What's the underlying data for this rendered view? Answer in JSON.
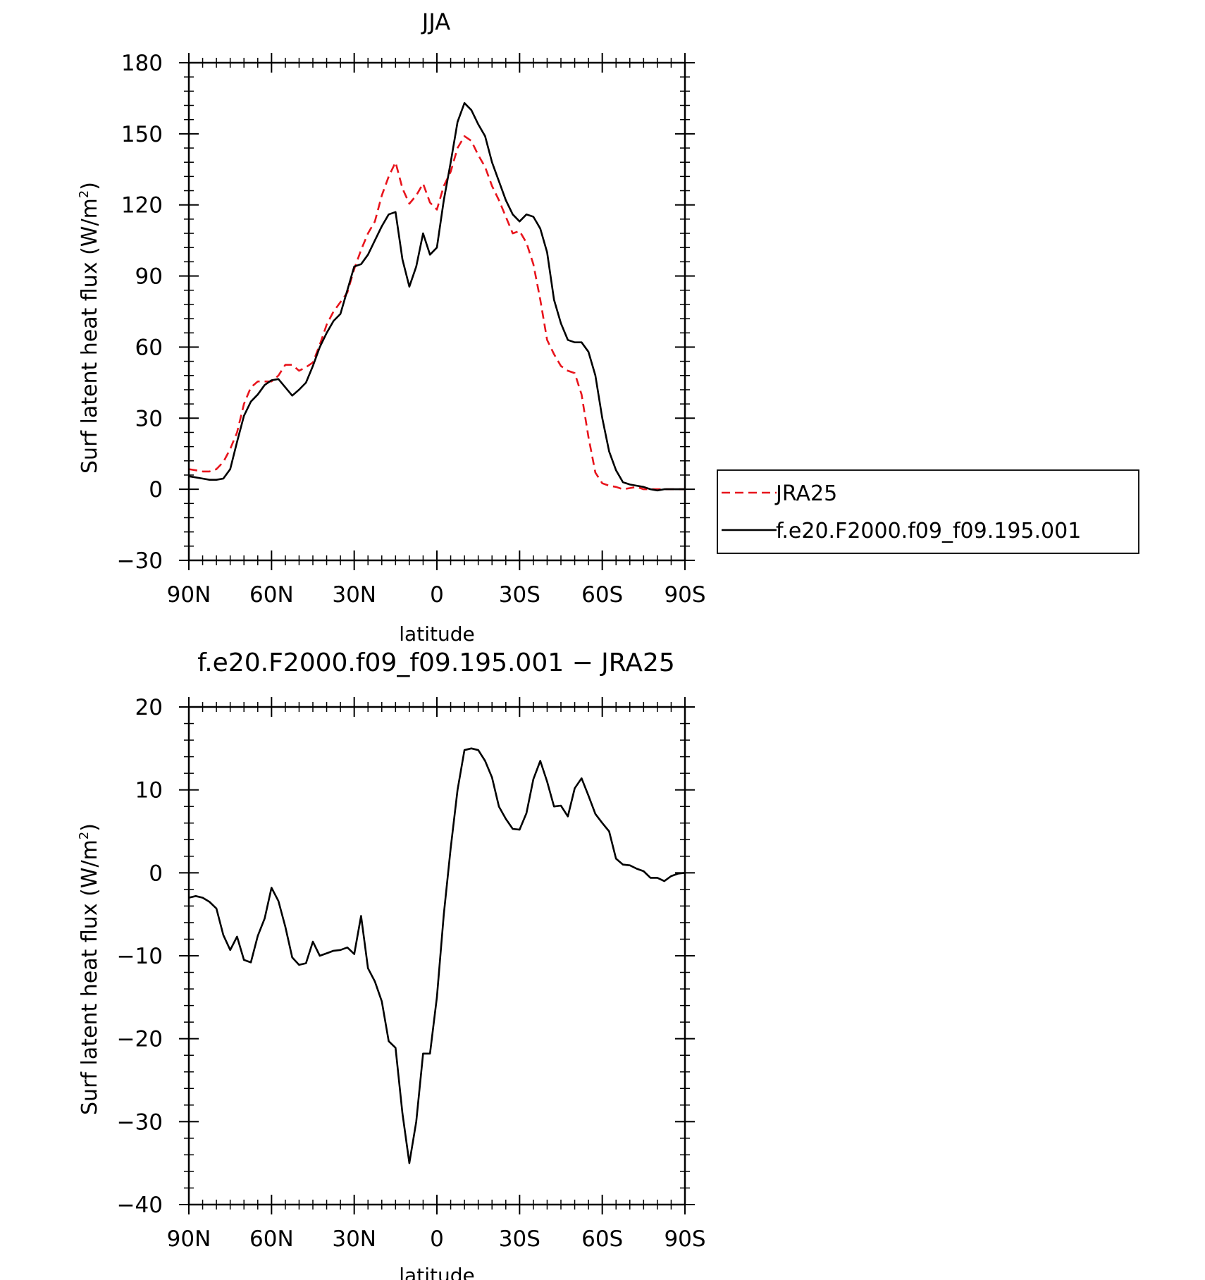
{
  "chart_data": [
    {
      "type": "line",
      "title": "JJA",
      "xlabel": "latitude",
      "ylabel": "Surf latent heat flux (W/m²)",
      "ylabel_main": "Surf latent heat flux (W/m",
      "ylabel_sup": "2",
      "ylabel_end": ")",
      "xlim": [
        90,
        -90
      ],
      "ylim": [
        -30,
        180
      ],
      "xticks": [
        90,
        60,
        30,
        0,
        -30,
        -60,
        -90
      ],
      "xtick_labels": [
        "90N",
        "60N",
        "30N",
        "0",
        "30S",
        "60S",
        "90S"
      ],
      "yticks": [
        -30,
        0,
        30,
        60,
        90,
        120,
        150,
        180
      ],
      "ytick_labels": [
        "−30",
        "0",
        "30",
        "60",
        "90",
        "120",
        "150",
        "180"
      ],
      "x": [
        90,
        87.5,
        85,
        82.5,
        80,
        77.5,
        75,
        72.5,
        70,
        67.5,
        65,
        62.5,
        60,
        57.5,
        55,
        52.5,
        50,
        47.5,
        45,
        42.5,
        40,
        37.5,
        35,
        32.5,
        30,
        27.5,
        25,
        22.5,
        20,
        17.5,
        15,
        12.5,
        10,
        7.5,
        5,
        2.5,
        0,
        -2.5,
        -5,
        -7.5,
        -10,
        -12.5,
        -15,
        -17.5,
        -20,
        -22.5,
        -25,
        -27.5,
        -30,
        -32.5,
        -35,
        -37.5,
        -40,
        -42.5,
        -45,
        -47.5,
        -50,
        -52.5,
        -55,
        -57.5,
        -60,
        -62.5,
        -65,
        -67.5,
        -70,
        -72.5,
        -75,
        -77.5,
        -80,
        -82.5,
        -85,
        -87.5,
        -90
      ],
      "series": [
        {
          "name": "JRA25",
          "color": "#e8141c",
          "style": "dashed",
          "values": [
            8.5,
            8,
            7.5,
            7.5,
            8.5,
            11.5,
            17,
            24,
            36,
            43,
            45.5,
            45.5,
            45.5,
            48,
            52.5,
            52.5,
            50,
            51.5,
            53.5,
            61,
            69.5,
            75,
            79,
            83,
            93,
            101,
            108,
            113,
            124,
            132,
            138,
            127,
            120.5,
            124,
            129,
            121,
            118,
            128,
            134,
            144,
            149,
            147,
            141,
            136,
            128,
            122,
            115,
            108,
            109,
            104,
            95,
            80,
            63,
            57,
            52,
            50,
            49,
            40,
            22,
            7,
            2.5,
            1.5,
            1,
            0,
            0.5,
            1,
            0,
            0,
            0,
            0,
            0,
            0,
            0
          ]
        },
        {
          "name": "f.e20.F2000.f09_f09.195.001",
          "color": "#000000",
          "style": "solid",
          "values": [
            5.5,
            5,
            4.5,
            4,
            4,
            4.5,
            8.5,
            20,
            31,
            37,
            40,
            44,
            46,
            46.5,
            43,
            39.5,
            42,
            45,
            52,
            60,
            66,
            71,
            74,
            84,
            94,
            95,
            99,
            105,
            111,
            116,
            117,
            97,
            85.5,
            94,
            108,
            99,
            102,
            122,
            138,
            155,
            163,
            160,
            154,
            149,
            138,
            130,
            122,
            116,
            113,
            116,
            115,
            110,
            100,
            80,
            70,
            63,
            62,
            62,
            58,
            48,
            30,
            16,
            8,
            3,
            2,
            1.5,
            1,
            0,
            -0.5,
            0,
            0,
            0,
            0
          ]
        }
      ],
      "legend": [
        "JRA25",
        "f.e20.F2000.f09_f09.195.001"
      ],
      "legend_position": "right"
    },
    {
      "type": "line",
      "title": "f.e20.F2000.f09_f09.195.001 − JRA25",
      "xlabel": "latitude",
      "ylabel": "Surf latent heat flux (W/m²)",
      "ylabel_main": "Surf latent heat flux (W/m",
      "ylabel_sup": "2",
      "ylabel_end": ")",
      "xlim": [
        90,
        -90
      ],
      "ylim": [
        -40,
        20
      ],
      "xticks": [
        90,
        60,
        30,
        0,
        -30,
        -60,
        -90
      ],
      "xtick_labels": [
        "90N",
        "60N",
        "30N",
        "0",
        "30S",
        "60S",
        "90S"
      ],
      "yticks": [
        -40,
        -30,
        -20,
        -10,
        0,
        10,
        20
      ],
      "ytick_labels": [
        "−40",
        "−30",
        "−20",
        "−10",
        "0",
        "10",
        "20"
      ],
      "x": [
        90,
        87.5,
        85,
        82.5,
        80,
        77.5,
        75,
        72.5,
        70,
        67.5,
        65,
        62.5,
        60,
        57.5,
        55,
        52.5,
        50,
        47.5,
        45,
        42.5,
        40,
        37.5,
        35,
        32.5,
        30,
        27.5,
        25,
        22.5,
        20,
        17.5,
        15,
        12.5,
        10,
        7.5,
        5,
        2.5,
        0,
        -2.5,
        -5,
        -7.5,
        -10,
        -12.5,
        -15,
        -17.5,
        -20,
        -22.5,
        -25,
        -27.5,
        -30,
        -32.5,
        -35,
        -37.5,
        -40,
        -42.5,
        -45,
        -47.5,
        -50,
        -52.5,
        -55,
        -57.5,
        -60,
        -62.5,
        -65,
        -67.5,
        -70,
        -72.5,
        -75,
        -77.5,
        -80,
        -82.5,
        -85,
        -87.5,
        -90
      ],
      "series": [
        {
          "name": "f.e20.F2000.f09_f09.195.001 − JRA25",
          "color": "#000000",
          "style": "solid",
          "values": [
            -3,
            -2.8,
            -3,
            -3.5,
            -4.3,
            -7.5,
            -9.3,
            -7.7,
            -10.5,
            -10.8,
            -7.6,
            -5.5,
            -1.8,
            -3.4,
            -6.5,
            -10.2,
            -11.1,
            -10.9,
            -8.3,
            -10,
            -9.7,
            -9.4,
            -9.3,
            -9,
            -9.8,
            -5.2,
            -11.5,
            -13.1,
            -15.5,
            -20.3,
            -21.1,
            -29,
            -35,
            -30,
            -21.8,
            -21.8,
            -15,
            -5,
            3,
            10,
            14.8,
            15,
            14.8,
            13.5,
            11.5,
            8,
            6.5,
            5.3,
            5.2,
            7.2,
            11.3,
            13.5,
            11,
            8,
            8.1,
            6.8,
            10.2,
            11.4,
            9.3,
            7.1,
            6,
            5,
            1.7,
            1,
            0.9,
            0.5,
            0.2,
            -0.6,
            -0.6,
            -1,
            -0.4,
            -0.1,
            0
          ]
        }
      ]
    }
  ]
}
